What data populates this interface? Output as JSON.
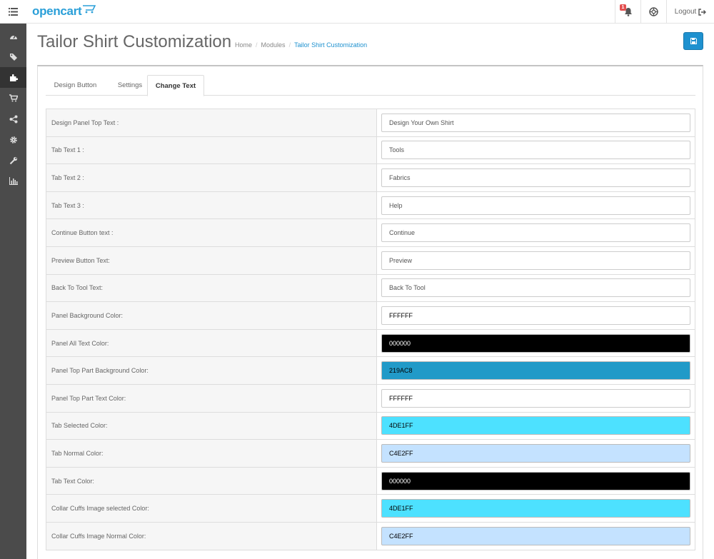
{
  "header": {
    "logo_text": "opencart",
    "notification_count": "1",
    "logout_label": "Logout"
  },
  "sidebar": {
    "items": [
      {
        "icon": "dashboard-icon"
      },
      {
        "icon": "tags-icon"
      },
      {
        "icon": "puzzle-icon",
        "active": true
      },
      {
        "icon": "cart-icon"
      },
      {
        "icon": "share-icon"
      },
      {
        "icon": "gear-icon"
      },
      {
        "icon": "wrench-icon"
      },
      {
        "icon": "bar-chart-icon"
      }
    ]
  },
  "page": {
    "title": "Tailor Shirt Customization",
    "breadcrumb": [
      "Home",
      "Modules",
      "Tailor Shirt Customization"
    ]
  },
  "tabs": [
    "Design Button",
    "Settings",
    "Change Text"
  ],
  "active_tab": "Change Text",
  "fields": [
    {
      "label": "Design Panel Top Text :",
      "value": "Design Your Own Shirt",
      "bg": "#ffffff",
      "fg": "#555555"
    },
    {
      "label": "Tab Text 1 :",
      "value": "Tools",
      "bg": "#ffffff",
      "fg": "#555555"
    },
    {
      "label": "Tab Text 2 :",
      "value": "Fabrics",
      "bg": "#ffffff",
      "fg": "#555555"
    },
    {
      "label": "Tab Text 3 :",
      "value": "Help",
      "bg": "#ffffff",
      "fg": "#555555"
    },
    {
      "label": "Continue Button text :",
      "value": "Continue",
      "bg": "#ffffff",
      "fg": "#555555"
    },
    {
      "label": "Preview Button Text:",
      "value": "Preview",
      "bg": "#ffffff",
      "fg": "#555555"
    },
    {
      "label": "Back To Tool Text:",
      "value": "Back To Tool",
      "bg": "#ffffff",
      "fg": "#555555"
    },
    {
      "label": "Panel Background Color:",
      "value": "FFFFFF",
      "bg": "#ffffff",
      "fg": "#000000"
    },
    {
      "label": "Panel All Text Color:",
      "value": "000000",
      "bg": "#000000",
      "fg": "#ffffff"
    },
    {
      "label": "Panel Top Part Background Color:",
      "value": "219AC8",
      "bg": "#219ac8",
      "fg": "#000000"
    },
    {
      "label": "Panel Top Part Text Color:",
      "value": "FFFFFF",
      "bg": "#ffffff",
      "fg": "#000000"
    },
    {
      "label": "Tab Selected Color:",
      "value": "4DE1FF",
      "bg": "#4de1ff",
      "fg": "#000000"
    },
    {
      "label": "Tab Normal Color:",
      "value": "C4E2FF",
      "bg": "#c4e2ff",
      "fg": "#000000"
    },
    {
      "label": "Tab Text Color:",
      "value": "000000",
      "bg": "#000000",
      "fg": "#ffffff"
    },
    {
      "label": "Collar Cuffs Image selected Color:",
      "value": "4DE1FF",
      "bg": "#4de1ff",
      "fg": "#000000"
    },
    {
      "label": "Collar Cuffs Image Normal Color:",
      "value": "C4E2FF",
      "bg": "#c4e2ff",
      "fg": "#000000"
    }
  ]
}
